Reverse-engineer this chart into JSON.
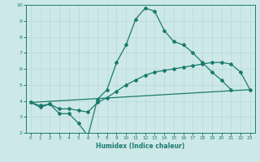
{
  "xlabel": "Humidex (Indice chaleur)",
  "background_color": "#cde8e8",
  "grid_color": "#b8d8d8",
  "line_color": "#1a7a6e",
  "xlim": [
    -0.5,
    23.5
  ],
  "ylim": [
    2,
    10
  ],
  "yticks": [
    2,
    3,
    4,
    5,
    6,
    7,
    8,
    9,
    10
  ],
  "xticks": [
    0,
    1,
    2,
    3,
    4,
    5,
    6,
    7,
    8,
    9,
    10,
    11,
    12,
    13,
    14,
    15,
    16,
    17,
    18,
    19,
    20,
    21,
    22,
    23
  ],
  "series1_x": [
    0,
    1,
    2,
    3,
    4,
    5,
    6,
    7,
    8,
    9,
    10,
    11,
    12,
    13,
    14,
    15,
    16,
    17,
    18,
    19,
    20,
    21
  ],
  "series1_y": [
    3.9,
    3.6,
    3.8,
    3.2,
    3.2,
    2.6,
    1.8,
    4.1,
    4.7,
    6.4,
    7.5,
    9.1,
    9.8,
    9.6,
    8.4,
    7.7,
    7.5,
    7.0,
    6.4,
    5.8,
    5.3,
    4.7
  ],
  "series2_x": [
    0,
    1,
    2,
    3,
    4,
    5,
    6,
    7,
    8,
    9,
    10,
    11,
    12,
    13,
    14,
    15,
    16,
    17,
    18,
    19,
    20,
    21,
    22,
    23
  ],
  "series2_y": [
    3.9,
    3.7,
    3.8,
    3.5,
    3.5,
    3.4,
    3.3,
    3.9,
    4.2,
    4.6,
    5.0,
    5.3,
    5.6,
    5.8,
    5.9,
    6.0,
    6.1,
    6.2,
    6.3,
    6.4,
    6.4,
    6.3,
    5.8,
    4.7
  ],
  "series3_x": [
    0,
    23
  ],
  "series3_y": [
    3.9,
    4.7
  ]
}
